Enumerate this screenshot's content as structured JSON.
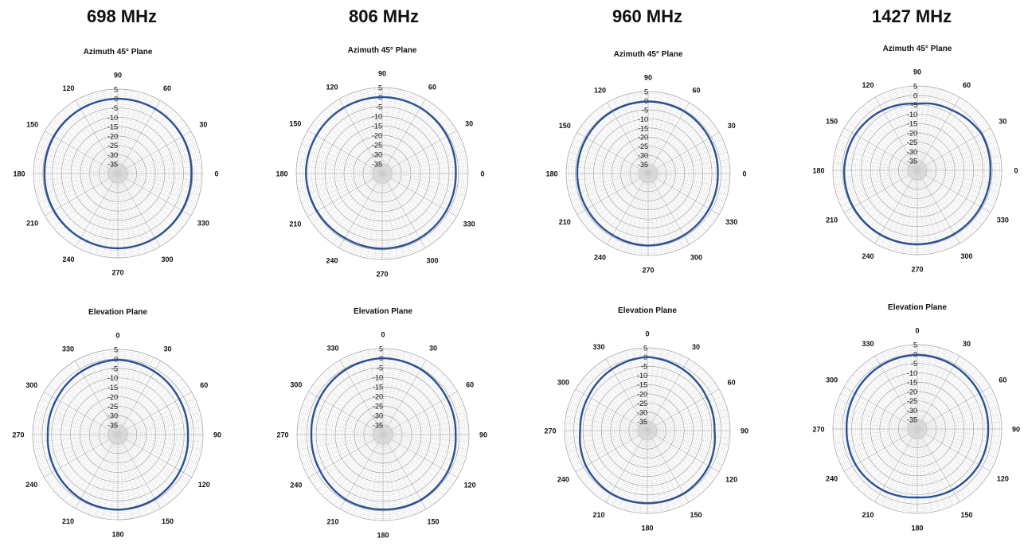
{
  "frequencies": [
    "698 MHz",
    "806 MHz",
    "960 MHz",
    "1427 MHz"
  ],
  "colors": {
    "trace": "#2b5191",
    "grid": "#c9c9c9",
    "grid_major": "#9a9a9a",
    "center": "#d4d4d4",
    "text": "#111111"
  },
  "chart_data": [
    {
      "type": "polar",
      "title": "Azimuth 45° Plane",
      "frequency": "698 MHz",
      "angle_labels": [
        "90",
        "60",
        "30",
        "0",
        "330",
        "300",
        "270",
        "240",
        "210",
        "180",
        "150",
        "120"
      ],
      "angles_deg": [
        90,
        60,
        30,
        0,
        330,
        300,
        270,
        240,
        210,
        180,
        150,
        120
      ],
      "radial_labels": [
        "5",
        "0",
        "-5",
        "-10",
        "-15",
        "-20",
        "-25",
        "-30",
        "-35"
      ],
      "rlim": [
        -40,
        5
      ],
      "series": [
        {
          "theta": [
            0,
            30,
            60,
            90,
            120,
            150,
            180,
            210,
            240,
            270,
            300,
            330
          ],
          "r": [
            -0.8,
            -0.4,
            -0.2,
            -0.1,
            -0.3,
            -0.6,
            -0.9,
            -0.6,
            -0.3,
            -0.1,
            -0.3,
            -0.6
          ]
        }
      ]
    },
    {
      "type": "polar",
      "title": "Azimuth 45° Plane",
      "frequency": "806 MHz",
      "angle_labels": [
        "90",
        "60",
        "30",
        "0",
        "330",
        "300",
        "270",
        "240",
        "210",
        "180",
        "150",
        "120"
      ],
      "angles_deg": [
        90,
        60,
        30,
        0,
        330,
        300,
        270,
        240,
        210,
        180,
        150,
        120
      ],
      "radial_labels": [
        "5",
        "0",
        "-5",
        "-10",
        "-15",
        "-20",
        "-25",
        "-30",
        "-35"
      ],
      "rlim": [
        -40,
        5
      ],
      "series": [
        {
          "theta": [
            0,
            30,
            60,
            90,
            120,
            150,
            180,
            210,
            240,
            270,
            300,
            330
          ],
          "r": [
            -1.5,
            -0.8,
            -0.2,
            0.0,
            -0.1,
            -0.2,
            -0.1,
            -0.6,
            -1.0,
            -0.7,
            -0.9,
            -1.2
          ]
        }
      ]
    },
    {
      "type": "polar",
      "title": "Azimuth 45° Plane",
      "frequency": "960 MHz",
      "angle_labels": [
        "90",
        "60",
        "30",
        "0",
        "330",
        "300",
        "270",
        "240",
        "210",
        "180",
        "150",
        "120"
      ],
      "angles_deg": [
        90,
        60,
        30,
        0,
        330,
        300,
        270,
        240,
        210,
        180,
        150,
        120
      ],
      "radial_labels": [
        "5",
        "0",
        "-5",
        "-10",
        "-15",
        "-20",
        "-25",
        "-30",
        "-35"
      ],
      "rlim": [
        -40,
        5
      ],
      "series": [
        {
          "theta": [
            0,
            30,
            60,
            90,
            120,
            150,
            180,
            210,
            240,
            270,
            300,
            330
          ],
          "r": [
            -1.8,
            -1.2,
            -0.6,
            -0.5,
            -0.6,
            -0.9,
            -1.1,
            -1.2,
            -1.0,
            -0.5,
            -0.9,
            -1.4
          ]
        }
      ]
    },
    {
      "type": "polar",
      "title": "Azimuth 45° Plane",
      "frequency": "1427 MHz",
      "angle_labels": [
        "90",
        "60",
        "30",
        "0",
        "330",
        "300",
        "270",
        "240",
        "210",
        "180",
        "150",
        "120"
      ],
      "angles_deg": [
        90,
        60,
        30,
        0,
        330,
        300,
        270,
        240,
        210,
        180,
        150,
        120
      ],
      "radial_labels": [
        "5",
        "0",
        "-5",
        "-10",
        "-15",
        "-20",
        "-25",
        "-30",
        "-35"
      ],
      "rlim": [
        -40,
        5
      ],
      "series": [
        {
          "theta": [
            0,
            30,
            60,
            75,
            90,
            105,
            120,
            150,
            180,
            210,
            240,
            270,
            300,
            330
          ],
          "r": [
            -1.0,
            -0.6,
            -3.0,
            -3.5,
            -4.5,
            -3.8,
            -3.0,
            -1.8,
            -1.0,
            -0.6,
            -0.5,
            -0.6,
            -0.8,
            -1.0
          ]
        }
      ]
    },
    {
      "type": "polar",
      "title": "Elevation Plane",
      "frequency": "698 MHz",
      "angle_labels": [
        "0",
        "30",
        "60",
        "90",
        "120",
        "150",
        "180",
        "210",
        "240",
        "270",
        "300",
        "330"
      ],
      "angles_deg": [
        90,
        60,
        30,
        0,
        330,
        300,
        270,
        240,
        210,
        180,
        150,
        120
      ],
      "radial_labels": [
        "5",
        "0",
        "-5",
        "-10",
        "-15",
        "-20",
        "-25",
        "-30",
        "-35"
      ],
      "rlim": [
        -40,
        5
      ],
      "series": [
        {
          "theta": [
            0,
            30,
            60,
            90,
            120,
            150,
            180,
            210,
            240,
            270,
            300,
            330
          ],
          "r": [
            -0.5,
            -1.5,
            -2.5,
            -3.0,
            -2.0,
            -0.8,
            -0.3,
            -0.8,
            -2.0,
            -3.0,
            -2.6,
            -1.5
          ]
        }
      ]
    },
    {
      "type": "polar",
      "title": "Elevation Plane",
      "frequency": "806 MHz",
      "angle_labels": [
        "0",
        "30",
        "60",
        "90",
        "120",
        "150",
        "180",
        "210",
        "240",
        "270",
        "300",
        "330"
      ],
      "angles_deg": [
        90,
        60,
        30,
        0,
        330,
        300,
        270,
        240,
        210,
        180,
        150,
        120
      ],
      "radial_labels": [
        "5",
        "0",
        "-5",
        "-10",
        "-15",
        "-20",
        "-25",
        "-30",
        "-35"
      ],
      "rlim": [
        -40,
        5
      ],
      "series": [
        {
          "theta": [
            0,
            30,
            60,
            90,
            120,
            150,
            180,
            210,
            240,
            270,
            300,
            330
          ],
          "r": [
            0.0,
            -0.5,
            -1.5,
            -2.0,
            -1.0,
            -0.5,
            -0.8,
            -0.8,
            -2.0,
            -2.5,
            -1.8,
            -0.8
          ]
        }
      ]
    },
    {
      "type": "polar",
      "title": "Elevation Plane",
      "frequency": "960 MHz",
      "angle_labels": [
        "0",
        "30",
        "60",
        "90",
        "120",
        "150",
        "180",
        "210",
        "240",
        "270",
        "300",
        "330"
      ],
      "angles_deg": [
        90,
        60,
        30,
        0,
        330,
        300,
        270,
        240,
        210,
        180,
        150,
        120
      ],
      "radial_labels": [
        "5",
        "0",
        "-5",
        "-10",
        "-15",
        "-20",
        "-25",
        "-30",
        "-35"
      ],
      "rlim": [
        -40,
        5
      ],
      "series": [
        {
          "theta": [
            0,
            30,
            60,
            90,
            120,
            150,
            180,
            210,
            240,
            270,
            300,
            330
          ],
          "r": [
            0.0,
            -1.5,
            -3.0,
            -3.5,
            -1.5,
            -0.5,
            -0.6,
            -0.5,
            -1.5,
            -3.5,
            -3.0,
            -1.5
          ]
        }
      ]
    },
    {
      "type": "polar",
      "title": "Elevation Plane",
      "frequency": "1427 MHz",
      "angle_labels": [
        "0",
        "30",
        "60",
        "90",
        "120",
        "150",
        "180",
        "210",
        "240",
        "270",
        "300",
        "330"
      ],
      "angles_deg": [
        90,
        60,
        30,
        0,
        330,
        300,
        270,
        240,
        210,
        180,
        150,
        120
      ],
      "radial_labels": [
        "5",
        "0",
        "-5",
        "-10",
        "-15",
        "-20",
        "-25",
        "-30",
        "-35"
      ],
      "rlim": [
        -40,
        5
      ],
      "series": [
        {
          "theta": [
            0,
            30,
            60,
            90,
            120,
            150,
            180,
            210,
            240,
            270,
            300,
            330
          ],
          "r": [
            -0.5,
            -1.0,
            -1.8,
            -2.2,
            -2.0,
            -2.5,
            -3.5,
            -2.5,
            -2.0,
            -2.3,
            -1.8,
            -1.0
          ]
        }
      ]
    }
  ]
}
